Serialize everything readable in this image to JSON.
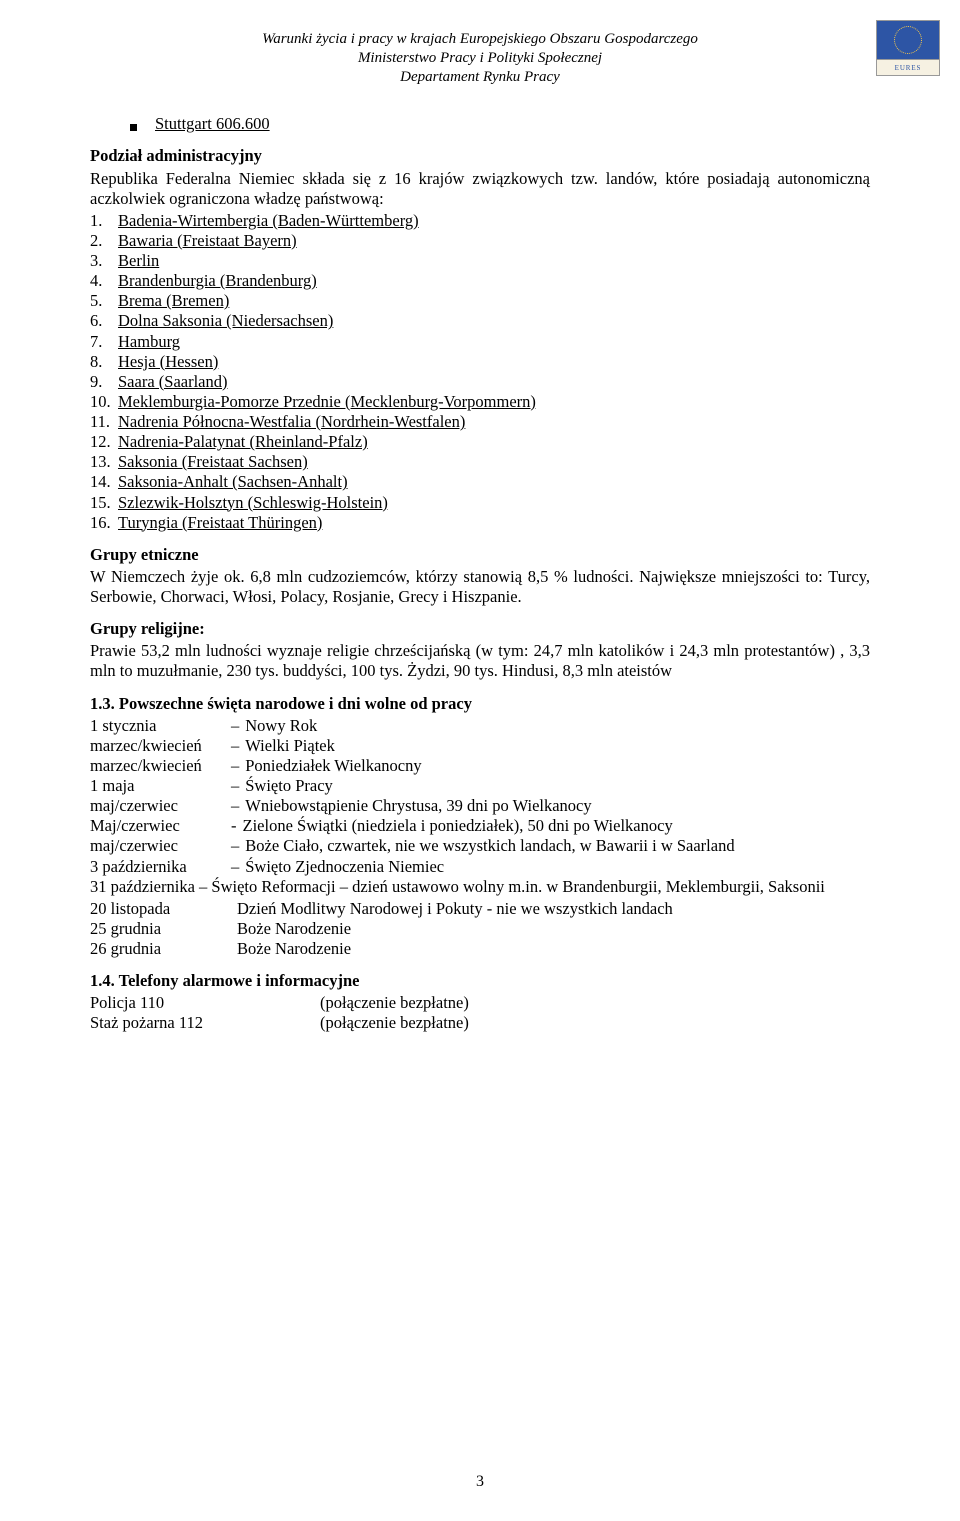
{
  "header": {
    "line1": "Warunki życia i pracy w krajach Europejskiego Obszaru Gospodarczego",
    "line2": "Ministerstwo Pracy i Polityki Społecznej",
    "line3": "Departament Rynku Pracy",
    "logo_label": "EURES"
  },
  "bullet_city": "Stuttgart 606.600",
  "intro": {
    "heading": "Podział administracyjny",
    "text": "Republika Federalna Niemiec składa się z 16 krajów związkowych tzw. landów, które posiadają autonomiczną aczkolwiek ograniczona władzę państwową:"
  },
  "states": [
    "Badenia-Wirtembergia (Baden-Württemberg)",
    "Bawaria (Freistaat Bayern)",
    "Berlin",
    "Brandenburgia (Brandenburg)",
    "Brema (Bremen)",
    "Dolna Saksonia (Niedersachsen)",
    "Hamburg",
    "Hesja (Hessen)",
    "Saara (Saarland)",
    "Meklemburgia-Pomorze Przednie (Mecklenburg-Vorpommern)",
    "Nadrenia Północna-Westfalia (Nordrhein-Westfalen)",
    "Nadrenia-Palatynat (Rheinland-Pfalz)",
    "Saksonia (Freistaat Sachsen)",
    "Saksonia-Anhalt (Sachsen-Anhalt)",
    "Szlezwik-Holsztyn (Schleswig-Holstein)",
    "Turyngia (Freistaat Thüringen)"
  ],
  "ethnic": {
    "heading": "Grupy etniczne",
    "text": "W Niemczech żyje ok. 6,8 mln cudzoziemców, którzy stanowią 8,5 % ludności. Największe mniejszości to: Turcy, Serbowie, Chorwaci, Włosi, Polacy, Rosjanie, Grecy i Hiszpanie."
  },
  "religion": {
    "heading": "Grupy religijne:",
    "text": "Prawie 53,2 mln ludności wyznaje religie chrześcijańską (w tym: 24,7 mln katolików i 24,3 mln protestantów) , 3,3 mln to muzułmanie, 230 tys. buddyści, 100 tys. Żydzi, 90 tys. Hindusi, 8,3 mln ateistów"
  },
  "holidays": {
    "heading": "1.3. Powszechne święta narodowe i dni wolne od pracy",
    "rows": [
      {
        "date": "1 stycznia",
        "label": "Nowy Rok",
        "sep": "–"
      },
      {
        "date": "marzec/kwiecień",
        "label": "Wielki Piątek",
        "sep": "–"
      },
      {
        "date": "marzec/kwiecień",
        "label": "Poniedziałek Wielkanocny",
        "sep": "–"
      },
      {
        "date": "1 maja",
        "label": "Święto Pracy",
        "sep": "–"
      },
      {
        "date": "maj/czerwiec",
        "label": "Wniebowstąpienie Chrystusa, 39 dni po Wielkanocy",
        "sep": "–"
      },
      {
        "date": "Maj/czerwiec",
        "label": "Zielone Świątki (niedziela i poniedziałek), 50 dni po Wielkanocy",
        "sep": "-"
      },
      {
        "date": "maj/czerwiec",
        "label": "Boże Ciało, czwartek, nie we wszystkich landach, w Bawarii i w Saarland",
        "sep": "–"
      },
      {
        "date": "3 października",
        "label": "Święto Zjednoczenia Niemiec",
        "sep": "–"
      },
      {
        "date": "31 października",
        "label": "Święto Reformacji – dzień ustawowo wolny m.in. w Brandenburgii, Meklemburgii, Saksonii",
        "sep": "–",
        "wrap": true
      },
      {
        "date": "20 listopada",
        "label": "Dzień Modlitwy Narodowej i Pokuty  -  nie we wszystkich landach",
        "sep": ""
      },
      {
        "date": "25 grudnia",
        "label": "Boże Narodzenie",
        "sep": ""
      },
      {
        "date": "26 grudnia",
        "label": "Boże Narodzenie",
        "sep": ""
      }
    ]
  },
  "alarms": {
    "heading": "1.4. Telefony alarmowe i informacyjne",
    "rows": [
      {
        "left": "Policja 110",
        "right": "(połączenie bezpłatne)"
      },
      {
        "left": "Staż pożarna 112",
        "right": "(połączenie bezpłatne)"
      }
    ]
  },
  "page_number": "3"
}
